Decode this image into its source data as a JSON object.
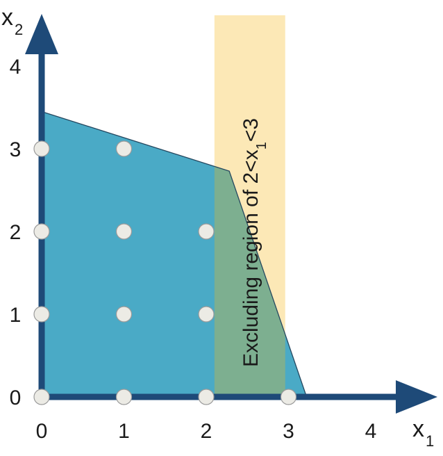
{
  "axes": {
    "x": {
      "label": "x",
      "subscript": "1",
      "ticks": [
        "0",
        "1",
        "2",
        "3",
        "4"
      ],
      "range": [
        0,
        4.3
      ]
    },
    "y": {
      "label": "x",
      "subscript": "2",
      "ticks": [
        "0",
        "1",
        "2",
        "3",
        "4"
      ],
      "range": [
        0,
        4.3
      ]
    }
  },
  "feasible_region": {
    "vertices": [
      [
        0,
        0
      ],
      [
        0,
        3.45
      ],
      [
        2.28,
        2.73
      ],
      [
        3.22,
        0
      ]
    ],
    "color": "#4aaac6"
  },
  "excluded_band": {
    "x_range": [
      2.1,
      2.96
    ],
    "label_parts": [
      "Excluding region of 2<x",
      "1",
      "<3"
    ],
    "color": "#fce8b6",
    "overlap_color": "#7daf90"
  },
  "integer_points": [
    [
      0,
      0
    ],
    [
      1,
      0
    ],
    [
      2,
      0
    ],
    [
      3,
      0
    ],
    [
      0,
      1
    ],
    [
      1,
      1
    ],
    [
      2,
      1
    ],
    [
      0,
      2
    ],
    [
      1,
      2
    ],
    [
      2,
      2
    ],
    [
      0,
      3
    ],
    [
      1,
      3
    ]
  ],
  "colors": {
    "axis": "#1e4a78",
    "point_fill": "#ecebe5",
    "point_stroke": "#9a9a9a",
    "region_edge": "#24475f"
  }
}
